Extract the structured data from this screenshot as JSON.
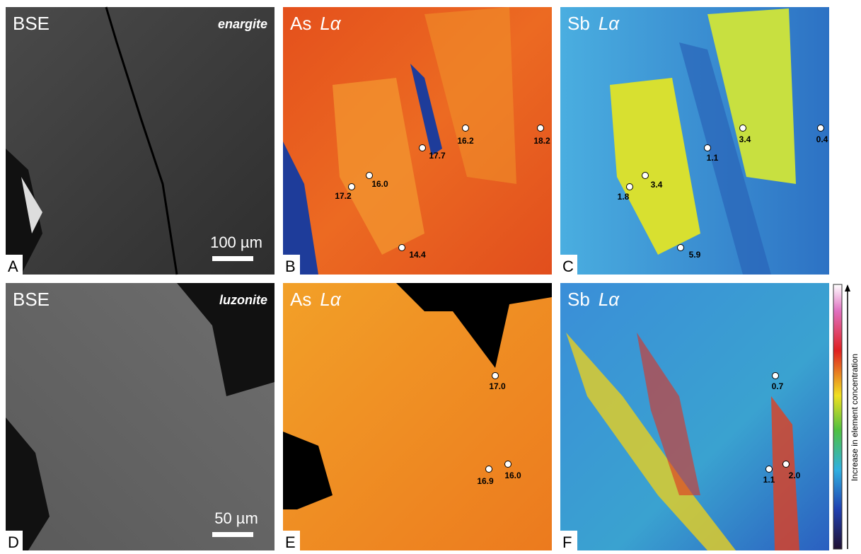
{
  "panels": [
    {
      "letter": "A",
      "title": "BSE",
      "mineral": "enargite",
      "scale_bar": "100 µm",
      "points": []
    },
    {
      "letter": "B",
      "title": "As",
      "title_line": "Lα",
      "points": [
        "16.2",
        "18.2",
        "17.7",
        "16.0",
        "17.2",
        "14.4"
      ]
    },
    {
      "letter": "C",
      "title": "Sb",
      "title_line": "Lα",
      "points": [
        "3.4",
        "0.4",
        "1.1",
        "3.4",
        "1.8",
        "5.9"
      ]
    },
    {
      "letter": "D",
      "title": "BSE",
      "mineral": "luzonite",
      "scale_bar": "50 µm",
      "points": []
    },
    {
      "letter": "E",
      "title": "As",
      "title_line": "Lα",
      "points": [
        "17.0",
        "16.9",
        "16.0"
      ]
    },
    {
      "letter": "F",
      "title": "Sb",
      "title_line": "Lα",
      "points": [
        "0.7",
        "1.1",
        "2.0"
      ]
    }
  ],
  "colorbar_label": "Increase in element concentration"
}
